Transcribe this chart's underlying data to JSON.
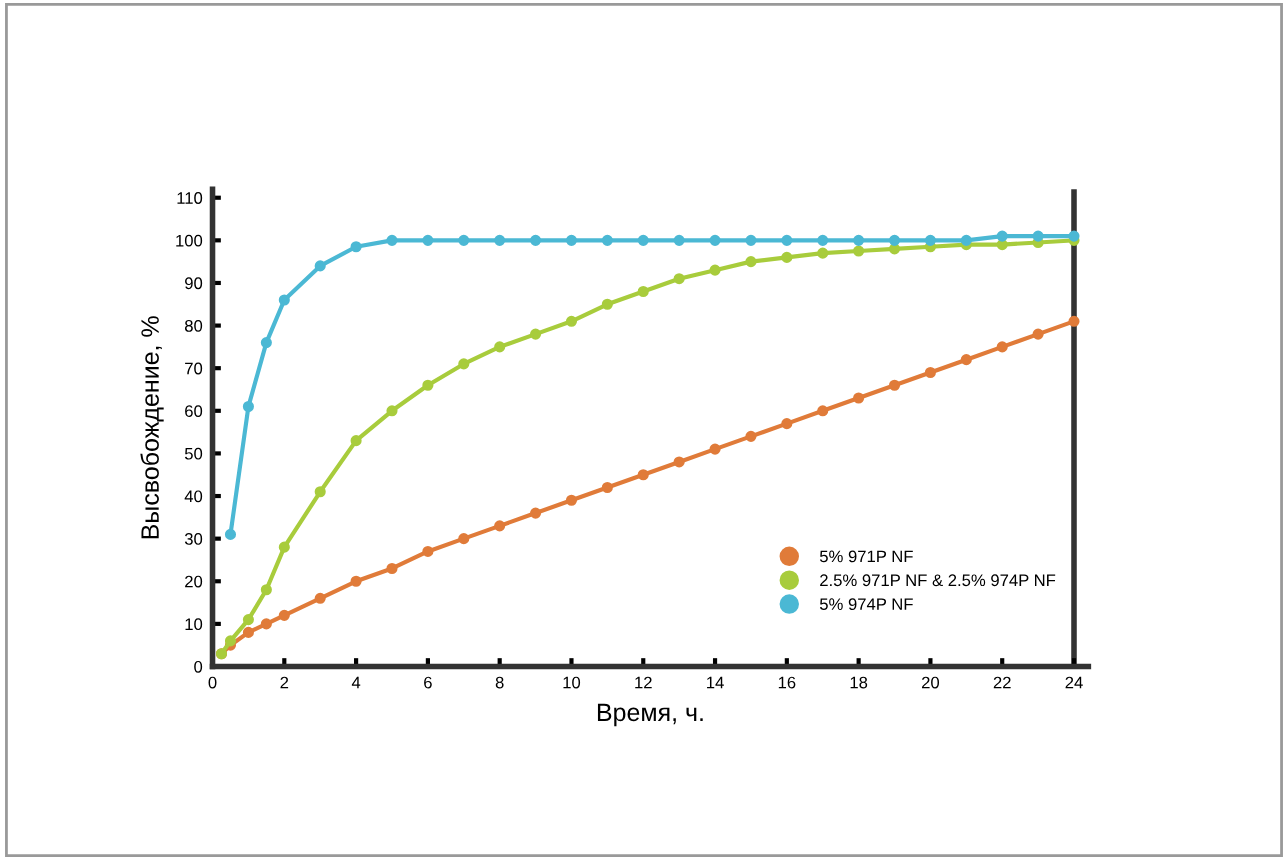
{
  "chart_data": {
    "type": "line",
    "xlabel": "Время, ч.",
    "ylabel": "Высвобождение, %",
    "xlim": [
      0,
      24.4
    ],
    "ylim": [
      0,
      112
    ],
    "xticks": [
      0,
      2,
      4,
      6,
      8,
      10,
      12,
      14,
      16,
      18,
      20,
      22,
      24
    ],
    "yticks": [
      0,
      10,
      20,
      30,
      40,
      50,
      60,
      70,
      80,
      90,
      100,
      110
    ],
    "grid": false,
    "legend": "bottom right",
    "marker": "circle",
    "line_style": "solid",
    "ref_lines": [
      {
        "axis": "x",
        "value": 24,
        "color": "#333333"
      }
    ],
    "series": [
      {
        "name": "5% 971P NF",
        "color": "#e07b39",
        "x": [
          0.25,
          0.5,
          1,
          1.5,
          2,
          3,
          4,
          5,
          6,
          7,
          8,
          9,
          10,
          11,
          12,
          13,
          14,
          15,
          16,
          17,
          18,
          19,
          20,
          21,
          22,
          23,
          24
        ],
        "values": [
          3,
          5,
          8,
          10,
          12,
          16,
          20,
          23,
          27,
          30,
          33,
          36,
          39,
          42,
          45,
          48,
          51,
          54,
          57,
          60,
          63,
          66,
          69,
          72,
          75,
          78,
          81
        ]
      },
      {
        "name": "2.5% 971P NF & 2.5% 974P NF",
        "color": "#a8cc3c",
        "x": [
          0.25,
          0.5,
          1,
          1.5,
          2,
          3,
          4,
          5,
          6,
          7,
          8,
          9,
          10,
          11,
          12,
          13,
          14,
          15,
          16,
          17,
          18,
          19,
          20,
          21,
          22,
          23,
          24
        ],
        "values": [
          3,
          6,
          11,
          18,
          28,
          41,
          53,
          60,
          66,
          71,
          75,
          78,
          81,
          85,
          88,
          91,
          93,
          95,
          96,
          97,
          97.5,
          98,
          98.5,
          99,
          99,
          99.5,
          100
        ]
      },
      {
        "name": "5% 974P NF",
        "color": "#4bb8d4",
        "x": [
          0.5,
          1,
          1.5,
          2,
          3,
          4,
          5,
          6,
          7,
          8,
          9,
          10,
          11,
          12,
          13,
          14,
          15,
          16,
          17,
          18,
          19,
          20,
          21,
          22,
          23,
          24
        ],
        "values": [
          31,
          61,
          76,
          86,
          94,
          98.5,
          100,
          100,
          100,
          100,
          100,
          100,
          100,
          100,
          100,
          100,
          100,
          100,
          100,
          100,
          100,
          100,
          100,
          101,
          101,
          101
        ]
      }
    ]
  }
}
